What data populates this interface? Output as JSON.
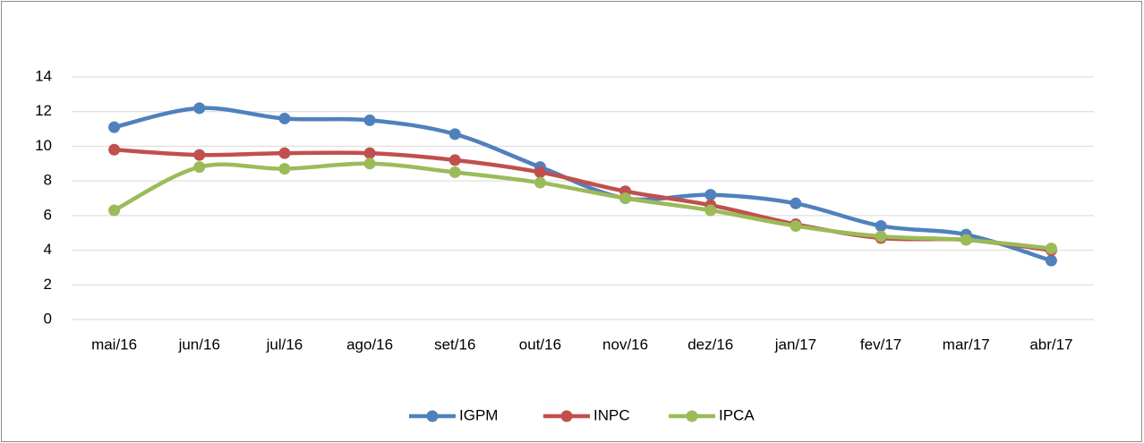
{
  "chart_data": {
    "type": "line",
    "categories": [
      "mai/16",
      "jun/16",
      "jul/16",
      "ago/16",
      "set/16",
      "out/16",
      "nov/16",
      "dez/16",
      "jan/17",
      "fev/17",
      "mar/17",
      "abr/17"
    ],
    "series": [
      {
        "name": "IGPM",
        "color": "#4f81bd",
        "values": [
          11.1,
          12.2,
          11.6,
          11.5,
          10.7,
          8.8,
          7.0,
          7.2,
          6.7,
          5.4,
          4.9,
          3.4
        ]
      },
      {
        "name": "INPC",
        "color": "#c0504d",
        "values": [
          9.8,
          9.5,
          9.6,
          9.6,
          9.2,
          8.5,
          7.4,
          6.6,
          5.5,
          4.7,
          4.6,
          4.0
        ]
      },
      {
        "name": "IPCA",
        "color": "#9bbb59",
        "values": [
          6.3,
          8.8,
          8.7,
          9.0,
          8.5,
          7.9,
          7.0,
          6.3,
          5.4,
          4.8,
          4.6,
          4.1
        ]
      }
    ],
    "ylim": [
      0,
      14
    ],
    "yticks": [
      0,
      2,
      4,
      6,
      8,
      10,
      12,
      14
    ],
    "grid": true,
    "smooth": true,
    "legend": "bottom"
  }
}
